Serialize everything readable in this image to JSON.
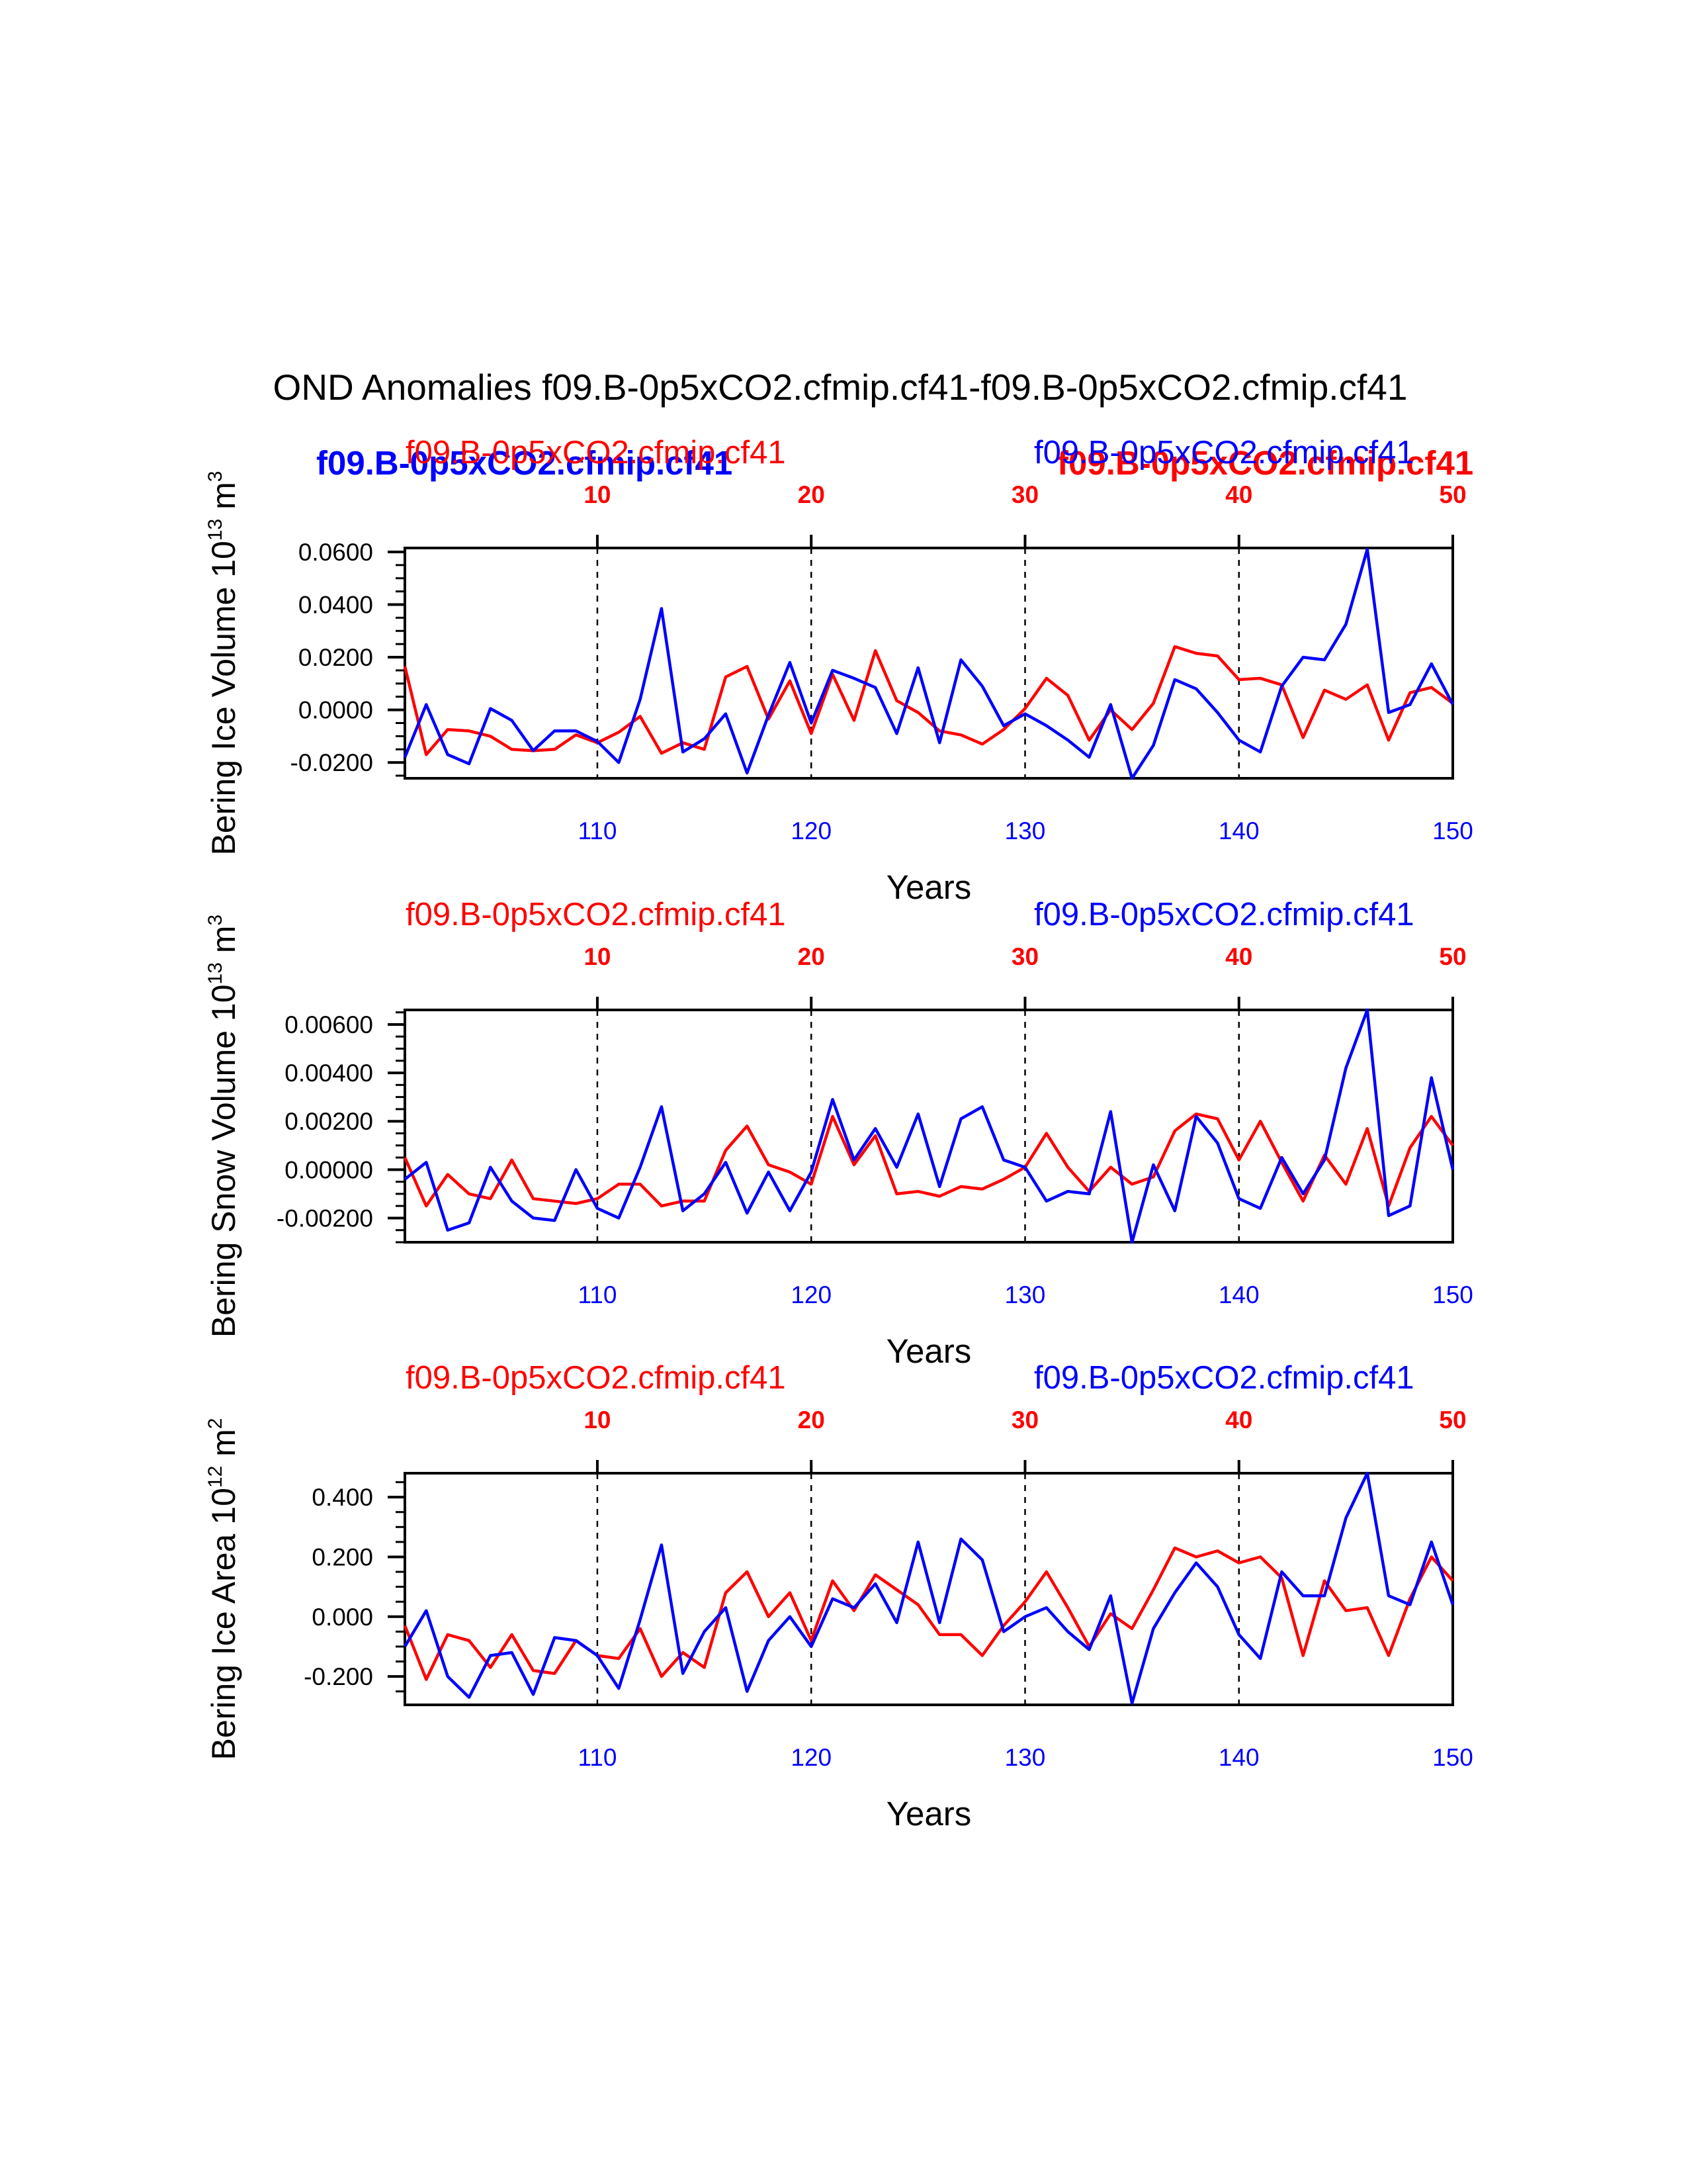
{
  "page_title": "OND Anomalies f09.B-0p5xCO2.cfmip.cf41-f09.B-0p5xCO2.cfmip.cf41",
  "overlay_labels": {
    "blue_bold": "f09.B-0p5xCO2.cfmip.cf41",
    "red_bold": "f09.B-0p5xCO2.cfmip.cf41"
  },
  "colors": {
    "red_series": "#ff0000",
    "blue_series": "#0000ff",
    "axis": "#000000"
  },
  "chart_data": [
    {
      "type": "line",
      "title": "Bering Ice Volume",
      "ylabel": "Bering Ice Volume 10",
      "ylabel_exponent": "13",
      "ylabel_unit": " m",
      "ylabel_unit_exponent": "3",
      "xlabel": "Years",
      "top_left_label": "f09.B-0p5xCO2.cfmip.cf41",
      "top_right_label": "f09.B-0p5xCO2.cfmip.cf41",
      "xlim_bottom": [
        101,
        150
      ],
      "xlim_top": [
        1,
        50
      ],
      "bottom_ticks": [
        "110",
        "120",
        "130",
        "140",
        "150"
      ],
      "bottom_tick_values": [
        110,
        120,
        130,
        140,
        150
      ],
      "top_ticks": [
        "10",
        "20",
        "30",
        "40",
        "50"
      ],
      "top_tick_values": [
        10,
        20,
        30,
        40,
        50
      ],
      "ylim": [
        -0.026,
        0.0615
      ],
      "y_ticks": [
        "0.0600",
        "0.0400",
        "0.0200",
        "0.0000",
        "-0.0200"
      ],
      "y_tick_values": [
        0.06,
        0.04,
        0.02,
        0.0,
        -0.02
      ],
      "y_minor_step": 0.005,
      "series": [
        {
          "name": "red (years 1-50, top axis)",
          "color": "red",
          "x": [
            1,
            2,
            3,
            4,
            5,
            6,
            7,
            8,
            9,
            10,
            11,
            12,
            13,
            14,
            15,
            16,
            17,
            18,
            19,
            20,
            21,
            22,
            23,
            24,
            25,
            26,
            27,
            28,
            29,
            30,
            31,
            32,
            33,
            34,
            35,
            36,
            37,
            38,
            39,
            40,
            41,
            42,
            43,
            44,
            45,
            46,
            47,
            48,
            49,
            50
          ],
          "values": [
            0.0165,
            -0.017,
            -0.0075,
            -0.008,
            -0.01,
            -0.015,
            -0.0155,
            -0.015,
            -0.0095,
            -0.0125,
            -0.0085,
            -0.0025,
            -0.0165,
            -0.0125,
            -0.015,
            0.0125,
            0.0165,
            -0.0035,
            0.011,
            -0.009,
            0.0135,
            -0.004,
            0.0225,
            0.0035,
            -0.001,
            -0.008,
            -0.0095,
            -0.013,
            -0.0075,
            0.0005,
            0.012,
            0.0055,
            -0.0115,
            0.0,
            -0.0075,
            0.0025,
            0.024,
            0.0215,
            0.0205,
            0.0115,
            0.012,
            0.0095,
            -0.0105,
            0.0075,
            0.004,
            0.0095,
            -0.0115,
            0.0065,
            0.0085,
            0.0025
          ]
        },
        {
          "name": "blue (years 101-150, bottom axis)",
          "color": "blue",
          "x": [
            101,
            102,
            103,
            104,
            105,
            106,
            107,
            108,
            109,
            110,
            111,
            112,
            113,
            114,
            115,
            116,
            117,
            118,
            119,
            120,
            121,
            122,
            123,
            124,
            125,
            126,
            127,
            128,
            129,
            130,
            131,
            132,
            133,
            134,
            135,
            136,
            137,
            138,
            139,
            140,
            141,
            142,
            143,
            144,
            145,
            146,
            147,
            148,
            149,
            150
          ],
          "values": [
            -0.018,
            0.002,
            -0.017,
            -0.0205,
            0.0005,
            -0.004,
            -0.0155,
            -0.008,
            -0.008,
            -0.012,
            -0.02,
            0.004,
            0.0385,
            -0.016,
            -0.011,
            -0.0015,
            -0.024,
            -0.002,
            0.018,
            -0.005,
            0.015,
            0.012,
            0.0085,
            -0.009,
            0.016,
            -0.0125,
            0.019,
            0.009,
            -0.006,
            -0.0015,
            -0.006,
            -0.0115,
            -0.018,
            0.002,
            -0.026,
            -0.0135,
            0.0115,
            0.008,
            -0.001,
            -0.0115,
            -0.016,
            0.009,
            0.02,
            0.019,
            0.0325,
            0.061,
            -0.001,
            0.002,
            0.0175,
            0.002
          ]
        }
      ]
    },
    {
      "type": "line",
      "title": "Bering Snow Volume",
      "ylabel": "Bering Snow Volume 10",
      "ylabel_exponent": "13",
      "ylabel_unit": " m",
      "ylabel_unit_exponent": "3",
      "xlabel": "Years",
      "top_left_label": "f09.B-0p5xCO2.cfmip.cf41",
      "top_right_label": "f09.B-0p5xCO2.cfmip.cf41",
      "xlim_bottom": [
        101,
        150
      ],
      "xlim_top": [
        1,
        50
      ],
      "bottom_ticks": [
        "110",
        "120",
        "130",
        "140",
        "150"
      ],
      "bottom_tick_values": [
        110,
        120,
        130,
        140,
        150
      ],
      "top_ticks": [
        "10",
        "20",
        "30",
        "40",
        "50"
      ],
      "top_tick_values": [
        10,
        20,
        30,
        40,
        50
      ],
      "ylim": [
        -0.003,
        0.0066
      ],
      "y_ticks": [
        "0.00600",
        "0.00400",
        "0.00200",
        "0.00000",
        "-0.00200"
      ],
      "y_tick_values": [
        0.006,
        0.004,
        0.002,
        0.0,
        -0.002
      ],
      "y_minor_step": 0.0005,
      "series": [
        {
          "name": "red (years 1-50, top axis)",
          "color": "red",
          "x": [
            1,
            2,
            3,
            4,
            5,
            6,
            7,
            8,
            9,
            10,
            11,
            12,
            13,
            14,
            15,
            16,
            17,
            18,
            19,
            20,
            21,
            22,
            23,
            24,
            25,
            26,
            27,
            28,
            29,
            30,
            31,
            32,
            33,
            34,
            35,
            36,
            37,
            38,
            39,
            40,
            41,
            42,
            43,
            44,
            45,
            46,
            47,
            48,
            49,
            50
          ],
          "values": [
            0.0005,
            -0.0015,
            -0.0002,
            -0.001,
            -0.0012,
            0.0004,
            -0.0012,
            -0.0013,
            -0.0014,
            -0.0012,
            -0.0006,
            -0.0006,
            -0.0015,
            -0.0013,
            -0.0013,
            0.0008,
            0.0018,
            0.0002,
            -0.0001,
            -0.0006,
            0.0022,
            0.0002,
            0.0014,
            -0.001,
            -0.0009,
            -0.0011,
            -0.0007,
            -0.0008,
            -0.0004,
            0.0001,
            0.0015,
            0.0001,
            -0.0009,
            0.0001,
            -0.0006,
            -0.0003,
            0.0016,
            0.0023,
            0.0021,
            0.0004,
            0.002,
            0.0003,
            -0.0013,
            0.0006,
            -0.0006,
            0.0017,
            -0.0015,
            0.0009,
            0.0022,
            0.001
          ]
        },
        {
          "name": "blue (years 101-150, bottom axis)",
          "color": "blue",
          "x": [
            101,
            102,
            103,
            104,
            105,
            106,
            107,
            108,
            109,
            110,
            111,
            112,
            113,
            114,
            115,
            116,
            117,
            118,
            119,
            120,
            121,
            122,
            123,
            124,
            125,
            126,
            127,
            128,
            129,
            130,
            131,
            132,
            133,
            134,
            135,
            136,
            137,
            138,
            139,
            140,
            141,
            142,
            143,
            144,
            145,
            146,
            147,
            148,
            149,
            150
          ],
          "values": [
            -0.0004,
            0.0003,
            -0.0025,
            -0.0022,
            0.0001,
            -0.0013,
            -0.002,
            -0.0021,
            0.0,
            -0.0016,
            -0.002,
            0.0001,
            0.0026,
            -0.0017,
            -0.001,
            0.0003,
            -0.0018,
            -0.0001,
            -0.0017,
            -0.0001,
            0.0029,
            0.0004,
            0.0017,
            0.0001,
            0.0023,
            -0.0007,
            0.0021,
            0.0026,
            0.0004,
            0.0001,
            -0.0013,
            -0.0009,
            -0.001,
            0.0024,
            -0.003,
            0.0002,
            -0.0017,
            0.0022,
            0.0011,
            -0.0012,
            -0.0016,
            0.0005,
            -0.001,
            0.0004,
            0.0042,
            0.0066,
            -0.0019,
            -0.0015,
            0.0038,
            0.0
          ]
        }
      ]
    },
    {
      "type": "line",
      "title": "Bering Ice Area",
      "ylabel": "Bering Ice Area 10",
      "ylabel_exponent": "12",
      "ylabel_unit": " m",
      "ylabel_unit_exponent": "2",
      "xlabel": "Years",
      "top_left_label": "f09.B-0p5xCO2.cfmip.cf41",
      "top_right_label": "f09.B-0p5xCO2.cfmip.cf41",
      "xlim_bottom": [
        101,
        150
      ],
      "xlim_top": [
        1,
        50
      ],
      "bottom_ticks": [
        "110",
        "120",
        "130",
        "140",
        "150"
      ],
      "bottom_tick_values": [
        110,
        120,
        130,
        140,
        150
      ],
      "top_ticks": [
        "10",
        "20",
        "30",
        "40",
        "50"
      ],
      "top_tick_values": [
        10,
        20,
        30,
        40,
        50
      ],
      "ylim": [
        -0.295,
        0.48
      ],
      "y_ticks": [
        "0.400",
        "0.200",
        "0.000",
        "-0.200"
      ],
      "y_tick_values": [
        0.4,
        0.2,
        0.0,
        -0.2
      ],
      "y_minor_step": 0.05,
      "series": [
        {
          "name": "red (years 1-50, top axis)",
          "color": "red",
          "x": [
            1,
            2,
            3,
            4,
            5,
            6,
            7,
            8,
            9,
            10,
            11,
            12,
            13,
            14,
            15,
            16,
            17,
            18,
            19,
            20,
            21,
            22,
            23,
            24,
            25,
            26,
            27,
            28,
            29,
            30,
            31,
            32,
            33,
            34,
            35,
            36,
            37,
            38,
            39,
            40,
            41,
            42,
            43,
            44,
            45,
            46,
            47,
            48,
            49,
            50
          ],
          "values": [
            -0.03,
            -0.21,
            -0.06,
            -0.08,
            -0.17,
            -0.06,
            -0.18,
            -0.19,
            -0.08,
            -0.13,
            -0.14,
            -0.04,
            -0.2,
            -0.12,
            -0.17,
            0.08,
            0.15,
            0.0,
            0.08,
            -0.08,
            0.12,
            0.02,
            0.14,
            0.09,
            0.04,
            -0.06,
            -0.06,
            -0.13,
            -0.03,
            0.05,
            0.15,
            0.03,
            -0.1,
            0.01,
            -0.04,
            0.09,
            0.23,
            0.2,
            0.22,
            0.18,
            0.2,
            0.13,
            -0.13,
            0.12,
            0.02,
            0.03,
            -0.13,
            0.06,
            0.2,
            0.12
          ]
        },
        {
          "name": "blue (years 101-150, bottom axis)",
          "color": "blue",
          "x": [
            101,
            102,
            103,
            104,
            105,
            106,
            107,
            108,
            109,
            110,
            111,
            112,
            113,
            114,
            115,
            116,
            117,
            118,
            119,
            120,
            121,
            122,
            123,
            124,
            125,
            126,
            127,
            128,
            129,
            130,
            131,
            132,
            133,
            134,
            135,
            136,
            137,
            138,
            139,
            140,
            141,
            142,
            143,
            144,
            145,
            146,
            147,
            148,
            149,
            150
          ],
          "values": [
            -0.1,
            0.02,
            -0.2,
            -0.27,
            -0.13,
            -0.12,
            -0.26,
            -0.07,
            -0.08,
            -0.13,
            -0.24,
            -0.01,
            0.24,
            -0.19,
            -0.05,
            0.03,
            -0.25,
            -0.08,
            0.0,
            -0.1,
            0.06,
            0.03,
            0.11,
            -0.02,
            0.25,
            -0.02,
            0.26,
            0.19,
            -0.05,
            0.0,
            0.03,
            -0.05,
            -0.11,
            0.07,
            -0.29,
            -0.04,
            0.08,
            0.18,
            0.1,
            -0.06,
            -0.14,
            0.15,
            0.07,
            0.07,
            0.33,
            0.48,
            0.07,
            0.04,
            0.25,
            0.04
          ]
        }
      ]
    }
  ]
}
